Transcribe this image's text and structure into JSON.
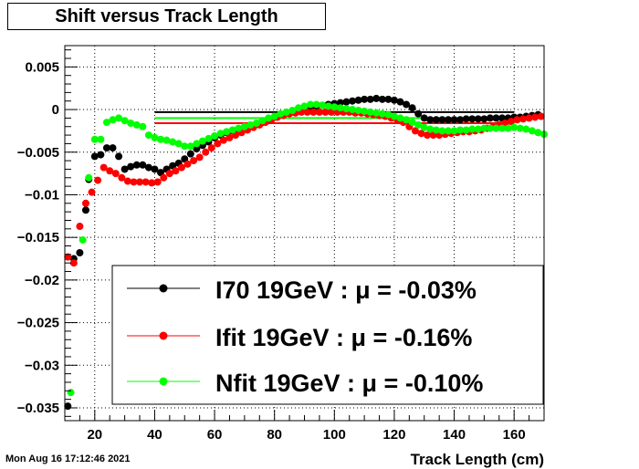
{
  "timestamp": "Mon Aug 16 17:12:46 2021",
  "chart_data": {
    "type": "scatter",
    "title": "Shift versus Track Length",
    "xlabel": "Track Length (cm)",
    "ylabel": "",
    "xlim": [
      10,
      170
    ],
    "ylim": [
      -0.0365,
      0.0075
    ],
    "x_ticks": [
      20,
      40,
      60,
      80,
      100,
      120,
      140,
      160
    ],
    "y_ticks": [
      0.005,
      0,
      -0.005,
      -0.01,
      -0.015,
      -0.02,
      -0.025,
      -0.03,
      -0.035
    ],
    "y_tick_labels": [
      "0.005",
      "0",
      "−0.005",
      "−0.01",
      "−0.015",
      "−0.02",
      "−0.025",
      "−0.03",
      "−0.035"
    ],
    "grid": true,
    "legend_position": "bottom-right",
    "series": [
      {
        "name": "I70  19GeV : μ = -0.03%",
        "color": "#000000",
        "mean": -0.0003,
        "mean_range": [
          40,
          160
        ],
        "points": [
          [
            11,
            -0.0348
          ],
          [
            13,
            -0.0175
          ],
          [
            15,
            -0.0168
          ],
          [
            17,
            -0.0118
          ],
          [
            18,
            -0.0082
          ],
          [
            20,
            -0.0055
          ],
          [
            22,
            -0.0053
          ],
          [
            24,
            -0.0045
          ],
          [
            26,
            -0.0045
          ],
          [
            28,
            -0.0055
          ],
          [
            30,
            -0.007
          ],
          [
            32,
            -0.0067
          ],
          [
            34,
            -0.0065
          ],
          [
            36,
            -0.0065
          ],
          [
            38,
            -0.0068
          ],
          [
            40,
            -0.007
          ],
          [
            42,
            -0.0074
          ],
          [
            44,
            -0.007
          ],
          [
            46,
            -0.0066
          ],
          [
            48,
            -0.0063
          ],
          [
            50,
            -0.0058
          ],
          [
            52,
            -0.0052
          ],
          [
            54,
            -0.0046
          ],
          [
            56,
            -0.0042
          ],
          [
            58,
            -0.0038
          ],
          [
            60,
            -0.0033
          ],
          [
            62,
            -0.003
          ],
          [
            64,
            -0.0027
          ],
          [
            66,
            -0.0025
          ],
          [
            68,
            -0.0023
          ],
          [
            70,
            -0.0021
          ],
          [
            72,
            -0.0019
          ],
          [
            74,
            -0.0017
          ],
          [
            76,
            -0.0015
          ],
          [
            78,
            -0.0012
          ],
          [
            80,
            -0.0009
          ],
          [
            82,
            -0.0006
          ],
          [
            84,
            -0.0004
          ],
          [
            86,
            -0.0002
          ],
          [
            88,
            0.0
          ],
          [
            90,
            0.0002
          ],
          [
            92,
            0.0003
          ],
          [
            94,
            0.0004
          ],
          [
            96,
            0.0005
          ],
          [
            98,
            0.0006
          ],
          [
            100,
            0.0007
          ],
          [
            102,
            0.0008
          ],
          [
            104,
            0.0009
          ],
          [
            106,
            0.001
          ],
          [
            108,
            0.0011
          ],
          [
            110,
            0.0012
          ],
          [
            112,
            0.0012
          ],
          [
            114,
            0.0013
          ],
          [
            116,
            0.0012
          ],
          [
            118,
            0.0012
          ],
          [
            120,
            0.0011
          ],
          [
            122,
            0.0009
          ],
          [
            124,
            0.0006
          ],
          [
            126,
            0.0002
          ],
          [
            128,
            -0.0005
          ],
          [
            130,
            -0.001
          ],
          [
            132,
            -0.0012
          ],
          [
            134,
            -0.0012
          ],
          [
            136,
            -0.0012
          ],
          [
            138,
            -0.0012
          ],
          [
            140,
            -0.0012
          ],
          [
            142,
            -0.0012
          ],
          [
            144,
            -0.0011
          ],
          [
            146,
            -0.0011
          ],
          [
            148,
            -0.0011
          ],
          [
            150,
            -0.0011
          ],
          [
            152,
            -0.001
          ],
          [
            154,
            -0.001
          ],
          [
            156,
            -0.001
          ],
          [
            158,
            -0.001
          ],
          [
            160,
            -0.0009
          ],
          [
            162,
            -0.0009
          ],
          [
            164,
            -0.0008
          ],
          [
            166,
            -0.0007
          ],
          [
            168,
            -0.0006
          ]
        ]
      },
      {
        "name": "Ifit 19GeV : μ = -0.16%",
        "color": "#ff0000",
        "mean": -0.0016,
        "mean_range": [
          40,
          160
        ],
        "points": [
          [
            11,
            -0.0173
          ],
          [
            13,
            -0.018
          ],
          [
            15,
            -0.0137
          ],
          [
            17,
            -0.011
          ],
          [
            19,
            -0.0097
          ],
          [
            21,
            -0.0083
          ],
          [
            23,
            -0.0068
          ],
          [
            25,
            -0.0072
          ],
          [
            27,
            -0.0075
          ],
          [
            29,
            -0.008
          ],
          [
            31,
            -0.0084
          ],
          [
            33,
            -0.0085
          ],
          [
            35,
            -0.0085
          ],
          [
            37,
            -0.0085
          ],
          [
            39,
            -0.0086
          ],
          [
            41,
            -0.0085
          ],
          [
            43,
            -0.008
          ],
          [
            45,
            -0.0075
          ],
          [
            47,
            -0.0072
          ],
          [
            49,
            -0.0068
          ],
          [
            51,
            -0.0064
          ],
          [
            53,
            -0.006
          ],
          [
            55,
            -0.0056
          ],
          [
            57,
            -0.005
          ],
          [
            59,
            -0.0045
          ],
          [
            61,
            -0.004
          ],
          [
            63,
            -0.0036
          ],
          [
            65,
            -0.0033
          ],
          [
            67,
            -0.003
          ],
          [
            69,
            -0.0027
          ],
          [
            71,
            -0.0024
          ],
          [
            73,
            -0.0021
          ],
          [
            75,
            -0.0018
          ],
          [
            77,
            -0.0015
          ],
          [
            79,
            -0.0012
          ],
          [
            81,
            -0.0009
          ],
          [
            83,
            -0.0007
          ],
          [
            85,
            -0.0005
          ],
          [
            87,
            -0.0004
          ],
          [
            89,
            -0.0003
          ],
          [
            91,
            -0.0003
          ],
          [
            93,
            -0.0003
          ],
          [
            95,
            -0.0003
          ],
          [
            97,
            -0.0003
          ],
          [
            99,
            -0.0003
          ],
          [
            101,
            -0.0003
          ],
          [
            103,
            -0.0003
          ],
          [
            105,
            -0.0003
          ],
          [
            107,
            -0.0004
          ],
          [
            109,
            -0.0004
          ],
          [
            111,
            -0.0005
          ],
          [
            113,
            -0.0006
          ],
          [
            115,
            -0.0007
          ],
          [
            117,
            -0.0008
          ],
          [
            119,
            -0.001
          ],
          [
            121,
            -0.0012
          ],
          [
            123,
            -0.0015
          ],
          [
            125,
            -0.002
          ],
          [
            127,
            -0.0025
          ],
          [
            129,
            -0.0028
          ],
          [
            131,
            -0.003
          ],
          [
            133,
            -0.003
          ],
          [
            135,
            -0.003
          ],
          [
            137,
            -0.0029
          ],
          [
            139,
            -0.0028
          ],
          [
            141,
            -0.0027
          ],
          [
            143,
            -0.0026
          ],
          [
            145,
            -0.0026
          ],
          [
            147,
            -0.0025
          ],
          [
            149,
            -0.0024
          ],
          [
            151,
            -0.0022
          ],
          [
            153,
            -0.002
          ],
          [
            155,
            -0.0018
          ],
          [
            157,
            -0.0016
          ],
          [
            159,
            -0.0014
          ],
          [
            161,
            -0.0012
          ],
          [
            163,
            -0.0011
          ],
          [
            165,
            -0.001
          ],
          [
            167,
            -0.0009
          ],
          [
            169,
            -0.0008
          ]
        ]
      },
      {
        "name": "Nfit 19GeV : μ = -0.10%",
        "color": "#00ff00",
        "mean": -0.001,
        "mean_range": [
          40,
          160
        ],
        "points": [
          [
            12,
            -0.0332
          ],
          [
            16,
            -0.0153
          ],
          [
            18,
            -0.008
          ],
          [
            20,
            -0.0035
          ],
          [
            22,
            -0.0035
          ],
          [
            24,
            -0.0015
          ],
          [
            26,
            -0.0012
          ],
          [
            28,
            -0.001
          ],
          [
            30,
            -0.0013
          ],
          [
            32,
            -0.0016
          ],
          [
            34,
            -0.0018
          ],
          [
            36,
            -0.002
          ],
          [
            38,
            -0.003
          ],
          [
            40,
            -0.0033
          ],
          [
            42,
            -0.0035
          ],
          [
            44,
            -0.0036
          ],
          [
            46,
            -0.0038
          ],
          [
            48,
            -0.004
          ],
          [
            50,
            -0.0043
          ],
          [
            52,
            -0.0043
          ],
          [
            54,
            -0.004
          ],
          [
            56,
            -0.0037
          ],
          [
            58,
            -0.0034
          ],
          [
            60,
            -0.0031
          ],
          [
            62,
            -0.0028
          ],
          [
            64,
            -0.0026
          ],
          [
            66,
            -0.0024
          ],
          [
            68,
            -0.0022
          ],
          [
            70,
            -0.002
          ],
          [
            72,
            -0.0018
          ],
          [
            74,
            -0.0016
          ],
          [
            76,
            -0.0013
          ],
          [
            78,
            -0.001
          ],
          [
            80,
            -0.0008
          ],
          [
            82,
            -0.0005
          ],
          [
            84,
            -0.0003
          ],
          [
            86,
            -0.0001
          ],
          [
            88,
            0.0002
          ],
          [
            90,
            0.0004
          ],
          [
            92,
            0.0006
          ],
          [
            94,
            0.0006
          ],
          [
            96,
            0.0005
          ],
          [
            98,
            0.0004
          ],
          [
            100,
            0.0003
          ],
          [
            102,
            0.0002
          ],
          [
            104,
            0.0001
          ],
          [
            106,
            0.0
          ],
          [
            108,
            -0.0001
          ],
          [
            110,
            -0.0002
          ],
          [
            112,
            -0.0003
          ],
          [
            114,
            -0.0004
          ],
          [
            116,
            -0.0005
          ],
          [
            118,
            -0.0006
          ],
          [
            120,
            -0.0008
          ],
          [
            122,
            -0.001
          ],
          [
            124,
            -0.0012
          ],
          [
            126,
            -0.0015
          ],
          [
            128,
            -0.0018
          ],
          [
            130,
            -0.0021
          ],
          [
            132,
            -0.0023
          ],
          [
            134,
            -0.0024
          ],
          [
            136,
            -0.0025
          ],
          [
            138,
            -0.0025
          ],
          [
            140,
            -0.0025
          ],
          [
            142,
            -0.0024
          ],
          [
            144,
            -0.0024
          ],
          [
            146,
            -0.0023
          ],
          [
            148,
            -0.0023
          ],
          [
            150,
            -0.0022
          ],
          [
            152,
            -0.0022
          ],
          [
            154,
            -0.0022
          ],
          [
            156,
            -0.0022
          ],
          [
            158,
            -0.0022
          ],
          [
            160,
            -0.0021
          ],
          [
            162,
            -0.0022
          ],
          [
            164,
            -0.0023
          ],
          [
            166,
            -0.0025
          ],
          [
            168,
            -0.0027
          ],
          [
            170,
            -0.0029
          ]
        ]
      }
    ]
  }
}
